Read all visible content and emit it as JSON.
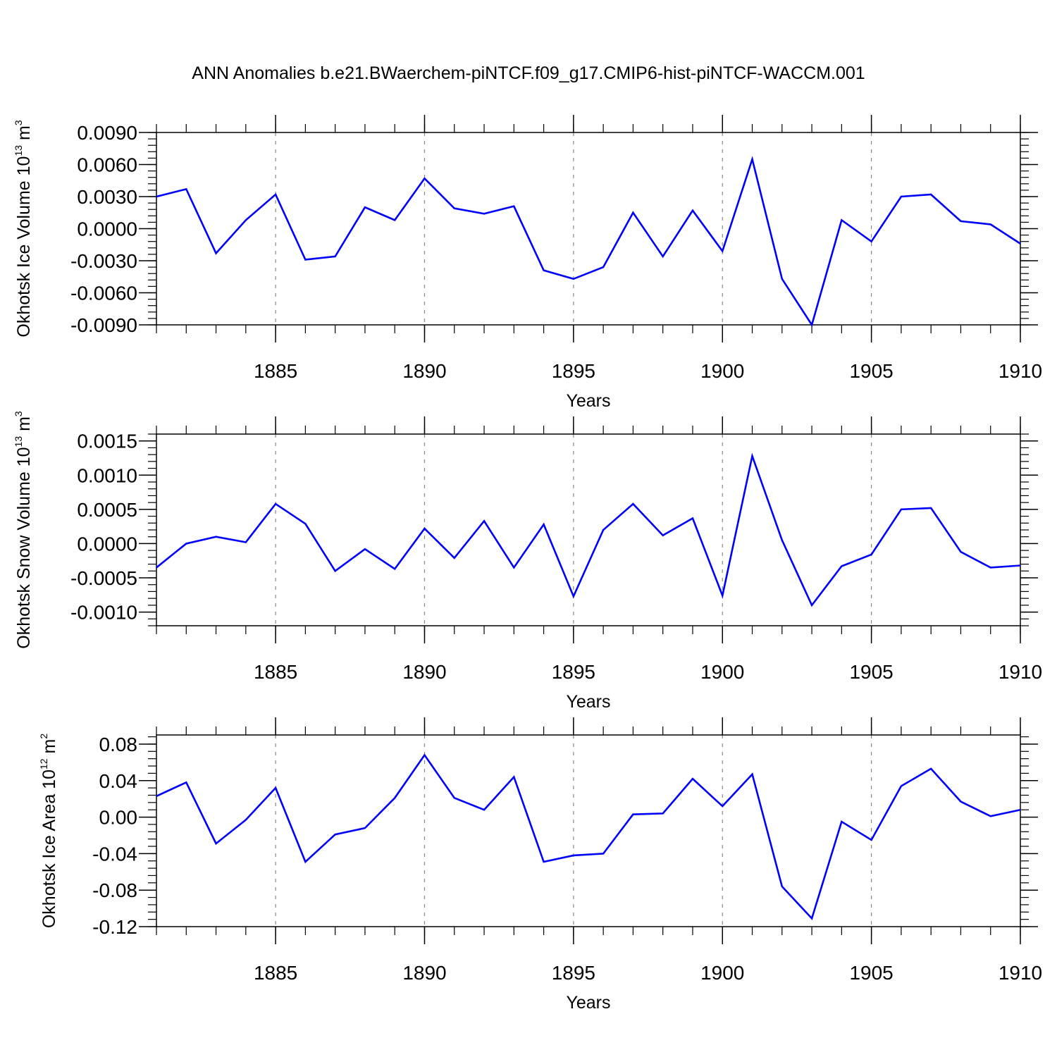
{
  "title": "ANN Anomalies b.e21.BWaerchem-piNTCF.f09_g17.CMIP6-hist-piNTCF-WACCM.001",
  "colors": {
    "line": "#0000ff",
    "axis": "#000000",
    "grid": "#888888",
    "background": "#ffffff"
  },
  "chart_data": [
    {
      "type": "line",
      "ylabel": {
        "text": "Okhotsk Ice Volume 10",
        "exp": "13",
        "unit": " m",
        "unit_exp": "3"
      },
      "xlabel": "Years",
      "xlim": [
        1881,
        1910
      ],
      "ylim": [
        -0.009,
        0.009
      ],
      "xticks": [
        1885,
        1890,
        1895,
        1900,
        1905,
        1910
      ],
      "xtick_labels": [
        "1885",
        "1890",
        "1895",
        "1900",
        "1905",
        "1910"
      ],
      "yticks": [
        0.009,
        0.006,
        0.003,
        0.0,
        -0.003,
        -0.006,
        -0.009
      ],
      "ytick_labels": [
        "0.0090",
        "0.0060",
        "0.0030",
        "0.0000",
        "-0.0030",
        "-0.0060",
        "-0.0090"
      ],
      "grid": "vertical-dashed",
      "x": [
        1881,
        1882,
        1883,
        1884,
        1885,
        1886,
        1887,
        1888,
        1889,
        1890,
        1891,
        1892,
        1893,
        1894,
        1895,
        1896,
        1897,
        1898,
        1899,
        1900,
        1901,
        1902,
        1903,
        1904,
        1905,
        1906,
        1907,
        1908,
        1909,
        1910
      ],
      "values": [
        0.003,
        0.0037,
        -0.0023,
        0.0008,
        0.0032,
        -0.0029,
        -0.0026,
        0.002,
        0.0008,
        0.0047,
        0.0019,
        0.0014,
        0.0021,
        -0.0039,
        -0.0047,
        -0.0036,
        0.0015,
        -0.0026,
        0.0017,
        -0.0021,
        0.0065,
        -0.0047,
        -0.009,
        0.0008,
        -0.0012,
        0.003,
        0.0032,
        0.0007,
        0.0004,
        -0.0014
      ]
    },
    {
      "type": "line",
      "ylabel": {
        "text": "Okhotsk Snow Volume 10",
        "exp": "13",
        "unit": " m",
        "unit_exp": "3"
      },
      "xlabel": "Years",
      "xlim": [
        1881,
        1910
      ],
      "ylim": [
        -0.0012,
        0.0016
      ],
      "xticks": [
        1885,
        1890,
        1895,
        1900,
        1905,
        1910
      ],
      "xtick_labels": [
        "1885",
        "1890",
        "1895",
        "1900",
        "1905",
        "1910"
      ],
      "yticks": [
        0.0015,
        0.001,
        0.0005,
        0.0,
        -0.0005,
        -0.001
      ],
      "ytick_labels": [
        "0.0015",
        "0.0010",
        "0.0005",
        "0.0000",
        "-0.0005",
        "-0.0010"
      ],
      "grid": "vertical-dashed",
      "x": [
        1881,
        1882,
        1883,
        1884,
        1885,
        1886,
        1887,
        1888,
        1889,
        1890,
        1891,
        1892,
        1893,
        1894,
        1895,
        1896,
        1897,
        1898,
        1899,
        1900,
        1901,
        1902,
        1903,
        1904,
        1905,
        1906,
        1907,
        1908,
        1909,
        1910
      ],
      "values": [
        -0.00035,
        0.0,
        0.0001,
        2e-05,
        0.00058,
        0.00029,
        -0.0004,
        -8e-05,
        -0.00037,
        0.00022,
        -0.00021,
        0.00033,
        -0.00035,
        0.00028,
        -0.00077,
        0.0002,
        0.00058,
        0.00012,
        0.00037,
        -0.00076,
        0.00128,
        5e-05,
        -0.0009,
        -0.00033,
        -0.00016,
        0.0005,
        0.00052,
        -0.00012,
        -0.00035,
        -0.00032
      ]
    },
    {
      "type": "line",
      "ylabel": {
        "text": "Okhotsk Ice Area 10",
        "exp": "12",
        "unit": " m",
        "unit_exp": "2"
      },
      "xlabel": "Years",
      "xlim": [
        1881,
        1910
      ],
      "ylim": [
        -0.12,
        0.09
      ],
      "xticks": [
        1885,
        1890,
        1895,
        1900,
        1905,
        1910
      ],
      "xtick_labels": [
        "1885",
        "1890",
        "1895",
        "1900",
        "1905",
        "1910"
      ],
      "yticks": [
        0.08,
        0.04,
        0.0,
        -0.04,
        -0.08,
        -0.12
      ],
      "ytick_labels": [
        "0.08",
        "0.04",
        "0.00",
        "-0.04",
        "-0.08",
        "-0.12"
      ],
      "grid": "vertical-dashed",
      "x": [
        1881,
        1882,
        1883,
        1884,
        1885,
        1886,
        1887,
        1888,
        1889,
        1890,
        1891,
        1892,
        1893,
        1894,
        1895,
        1896,
        1897,
        1898,
        1899,
        1900,
        1901,
        1902,
        1903,
        1904,
        1905,
        1906,
        1907,
        1908,
        1909,
        1910
      ],
      "values": [
        0.023,
        0.038,
        -0.029,
        -0.003,
        0.032,
        -0.049,
        -0.019,
        -0.012,
        0.021,
        0.068,
        0.021,
        0.008,
        0.044,
        -0.049,
        -0.042,
        -0.04,
        0.003,
        0.004,
        0.042,
        0.012,
        0.047,
        -0.076,
        -0.111,
        -0.005,
        -0.025,
        0.034,
        0.053,
        0.017,
        0.001,
        0.008
      ]
    }
  ]
}
